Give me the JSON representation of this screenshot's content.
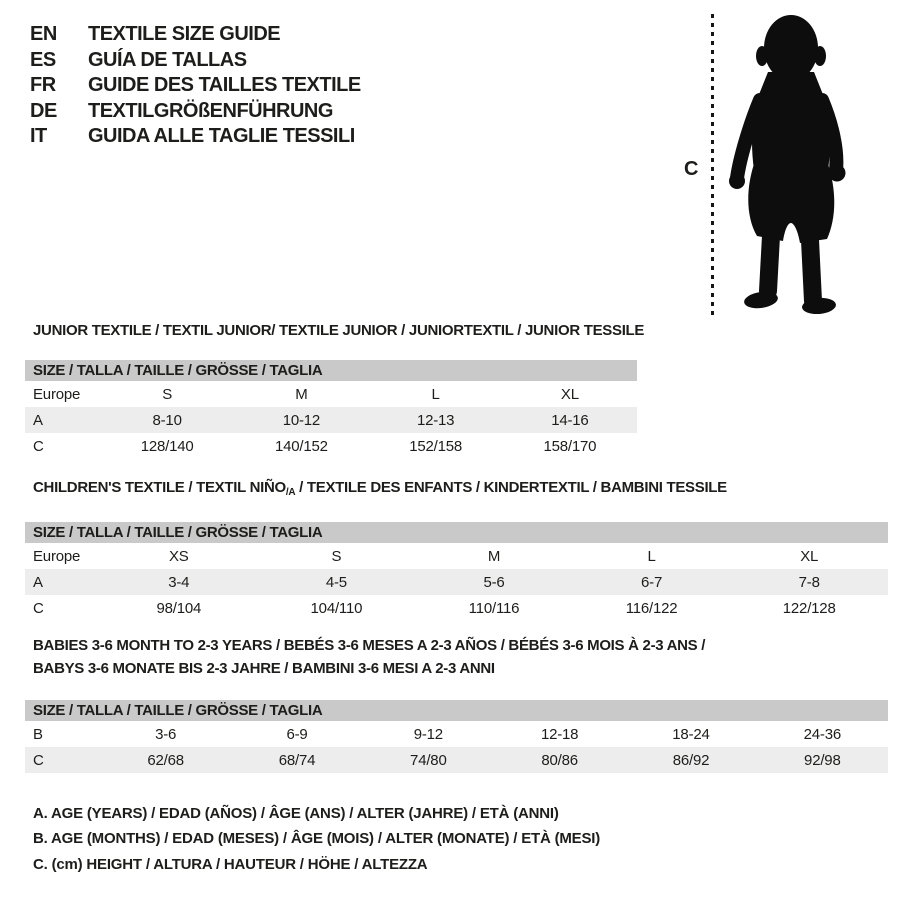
{
  "colors": {
    "background": "#ffffff",
    "text": "#1d1d1b",
    "table_header_bg": "#c9c9c9",
    "row_stripe_bg": "#ededed",
    "silhouette": "#0d0d0d"
  },
  "languages": [
    {
      "code": "EN",
      "label": "TEXTILE SIZE GUIDE"
    },
    {
      "code": "ES",
      "label": "GUÍA DE TALLAS"
    },
    {
      "code": "FR",
      "label": "GUIDE DES TAILLES TEXTILE"
    },
    {
      "code": "DE",
      "label": "TEXTILGRÖßENFÜHRUNG"
    },
    {
      "code": "IT",
      "label": "GUIDA ALLE TAGLIE TESSILI"
    }
  ],
  "figure": {
    "height_label": "C",
    "silhouette": "standing-toddler-silhouette"
  },
  "sections": [
    {
      "id": "junior",
      "heading_lines": [
        [
          {
            "text": "JUNIOR TEXTILE / TEXTIL JUNIOR/ TEXTILE JUNIOR / JUNIORTEXTIL / JUNIOR TESSILE"
          }
        ]
      ],
      "size_header": "SIZE / TALLA / TAILLE / GRÖSSE / TAGLIA",
      "rows": [
        {
          "label": "Europe",
          "cells": [
            "S",
            "M",
            "L",
            "XL"
          ],
          "striped": false
        },
        {
          "label": "A",
          "cells": [
            "8-10",
            "10-12",
            "12-13",
            "14-16"
          ],
          "striped": true
        },
        {
          "label": "C",
          "cells": [
            "128/140",
            "140/152",
            "152/158",
            "158/170"
          ],
          "striped": false
        }
      ]
    },
    {
      "id": "children",
      "heading_lines": [
        [
          {
            "text": "CHILDREN'S TEXTILE / TEXTIL NIÑO"
          },
          {
            "text": "/A",
            "sub": true
          },
          {
            "text": " / TEXTILE DES ENFANTS / KINDERTEXTIL / BAMBINI TESSILE"
          }
        ]
      ],
      "size_header": "SIZE / TALLA / TAILLE / GRÖSSE / TAGLIA",
      "rows": [
        {
          "label": "Europe",
          "cells": [
            "XS",
            "S",
            "M",
            "L",
            "XL"
          ],
          "striped": false
        },
        {
          "label": "A",
          "cells": [
            "3-4",
            "4-5",
            "5-6",
            "6-7",
            "7-8"
          ],
          "striped": true
        },
        {
          "label": "C",
          "cells": [
            "98/104",
            "104/110",
            "110/116",
            "116/122",
            "122/128"
          ],
          "striped": false
        }
      ]
    },
    {
      "id": "babies",
      "heading_lines": [
        [
          {
            "text": "BABIES 3-6 MONTH TO 2-3 YEARS / BEBÉS 3-6 MESES A 2-3 AÑOS / BÉBÉS 3-6 MOIS À 2-3 ANS /"
          }
        ],
        [
          {
            "text": "BABYS 3-6 MONATE BIS 2-3 JAHRE / BAMBINI 3-6 MESI A 2-3 ANNI"
          }
        ]
      ],
      "size_header": "SIZE / TALLA / TAILLE / GRÖSSE / TAGLIA",
      "rows": [
        {
          "label": "B",
          "cells": [
            "3-6",
            "6-9",
            "9-12",
            "12-18",
            "18-24",
            "24-36"
          ],
          "striped": false
        },
        {
          "label": "C",
          "cells": [
            "62/68",
            "68/74",
            "74/80",
            "80/86",
            "86/92",
            "92/98"
          ],
          "striped": true
        }
      ]
    }
  ],
  "footnotes": [
    "A. AGE (YEARS) / EDAD (AÑOS) / ÂGE (ANS) / ALTER (JAHRE) / ETÀ (ANNI)",
    "B. AGE (MONTHS) / EDAD (MESES) / ÂGE (MOIS) / ALTER (MONATE) / ETÀ (MESI)",
    "C. (cm) HEIGHT / ALTURA / HAUTEUR / HÖHE / ALTEZZA"
  ]
}
